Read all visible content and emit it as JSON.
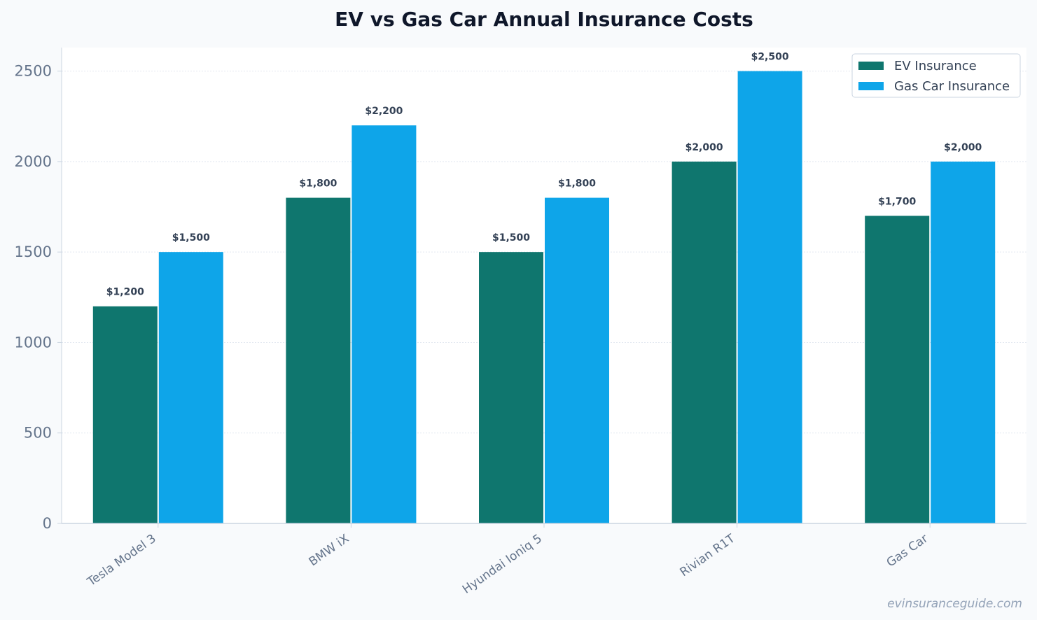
{
  "chart_data": {
    "type": "bar",
    "title": "EV vs Gas Car Annual Insurance Costs",
    "xlabel": "",
    "ylabel": "",
    "categories": [
      "Tesla Model 3",
      "BMW iX",
      "Hyundai Ioniq 5",
      "Rivian R1T",
      "Gas Car"
    ],
    "series": [
      {
        "name": "EV Insurance",
        "color": "#0f766e",
        "values": [
          1200,
          1800,
          1500,
          2000,
          1700
        ],
        "labels": [
          "$1,200",
          "$1,800",
          "$1,500",
          "$2,000",
          "$1,700"
        ]
      },
      {
        "name": "Gas Car Insurance",
        "color": "#0ea5e9",
        "values": [
          1500,
          2200,
          1800,
          2500,
          2000
        ],
        "labels": [
          "$1,500",
          "$2,200",
          "$1,800",
          "$2,500",
          "$2,000"
        ]
      }
    ],
    "yticks": [
      "0",
      "500",
      "1000",
      "1500",
      "2000",
      "2500"
    ],
    "ylim": [
      0,
      2630
    ],
    "grid": true,
    "legend": "top-right"
  },
  "watermark": "evinsuranceguide.com"
}
